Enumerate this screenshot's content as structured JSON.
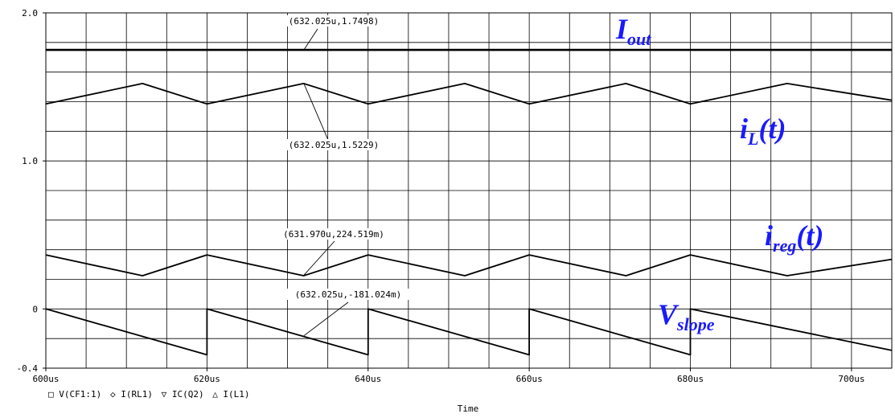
{
  "chart_data": {
    "type": "line",
    "xlabel": "Time",
    "ylabel": "",
    "xlim": [
      600,
      705
    ],
    "ylim": [
      -0.4,
      2.0
    ],
    "x_unit": "us",
    "x_ticks": [
      {
        "value": 600,
        "label": "600us"
      },
      {
        "value": 620,
        "label": "620us"
      },
      {
        "value": 640,
        "label": "640us"
      },
      {
        "value": 660,
        "label": "660us"
      },
      {
        "value": 680,
        "label": "680us"
      },
      {
        "value": 700,
        "label": "700us"
      }
    ],
    "y_ticks": [
      {
        "value": 2.0,
        "label": "2.0"
      },
      {
        "value": 1.0,
        "label": "1.0"
      },
      {
        "value": 0,
        "label": "0"
      },
      {
        "value": -0.4,
        "label": "-0.4"
      }
    ],
    "grid": true,
    "series": [
      {
        "name": "Iout",
        "color": "#000000",
        "x": [
          600,
          705
        ],
        "y": [
          1.7498,
          1.7498
        ]
      },
      {
        "name": "iL(t)",
        "color": "#000000",
        "x": [
          600,
          612,
          620,
          632,
          640,
          652,
          660,
          672,
          680,
          692,
          705
        ],
        "y": [
          1.385,
          1.5229,
          1.385,
          1.5229,
          1.385,
          1.5229,
          1.385,
          1.5229,
          1.385,
          1.5229,
          1.41
        ]
      },
      {
        "name": "ireg(t)",
        "color": "#000000",
        "x": [
          600,
          612,
          620,
          632,
          640,
          652,
          660,
          672,
          680,
          692,
          705
        ],
        "y": [
          0.365,
          0.2245,
          0.365,
          0.2245,
          0.365,
          0.2245,
          0.365,
          0.2245,
          0.365,
          0.2245,
          0.335
        ]
      },
      {
        "name": "Vslope",
        "color": "#000000",
        "x": [
          600,
          620,
          620,
          640,
          640,
          660,
          660,
          680,
          680,
          705
        ],
        "y": [
          0.0,
          -0.31,
          0.0,
          -0.31,
          0.0,
          -0.31,
          0.0,
          -0.31,
          0.0,
          -0.28
        ]
      }
    ],
    "legend": [
      {
        "marker": "□",
        "label": "V(CF1:1)"
      },
      {
        "marker": "◇",
        "label": "I(RL1)"
      },
      {
        "marker": "▽",
        "label": "IC(Q2)"
      },
      {
        "marker": "△",
        "label": "I(L1)"
      }
    ],
    "legend_position": "bottom-left",
    "cursor_labels": [
      {
        "text": "(632.025u,1.7498)",
        "x": 632.025,
        "y": 1.7498
      },
      {
        "text": "(632.025u,1.5229)",
        "x": 632.025,
        "y": 1.5229
      },
      {
        "text": "(631.970u,224.519m)",
        "x": 631.97,
        "y": 0.224519
      },
      {
        "text": "(632.025u,-181.024m)",
        "x": 632.025,
        "y": -0.181024
      }
    ],
    "trace_labels": [
      {
        "main": "I",
        "sub": "out",
        "suffix": ""
      },
      {
        "main": "i",
        "sub": "L",
        "suffix": "(t)"
      },
      {
        "main": "i",
        "sub": "reg",
        "suffix": "(t)"
      },
      {
        "main": "V",
        "sub": "slope",
        "suffix": ""
      }
    ],
    "trace_label_color": "#1a1aff"
  }
}
